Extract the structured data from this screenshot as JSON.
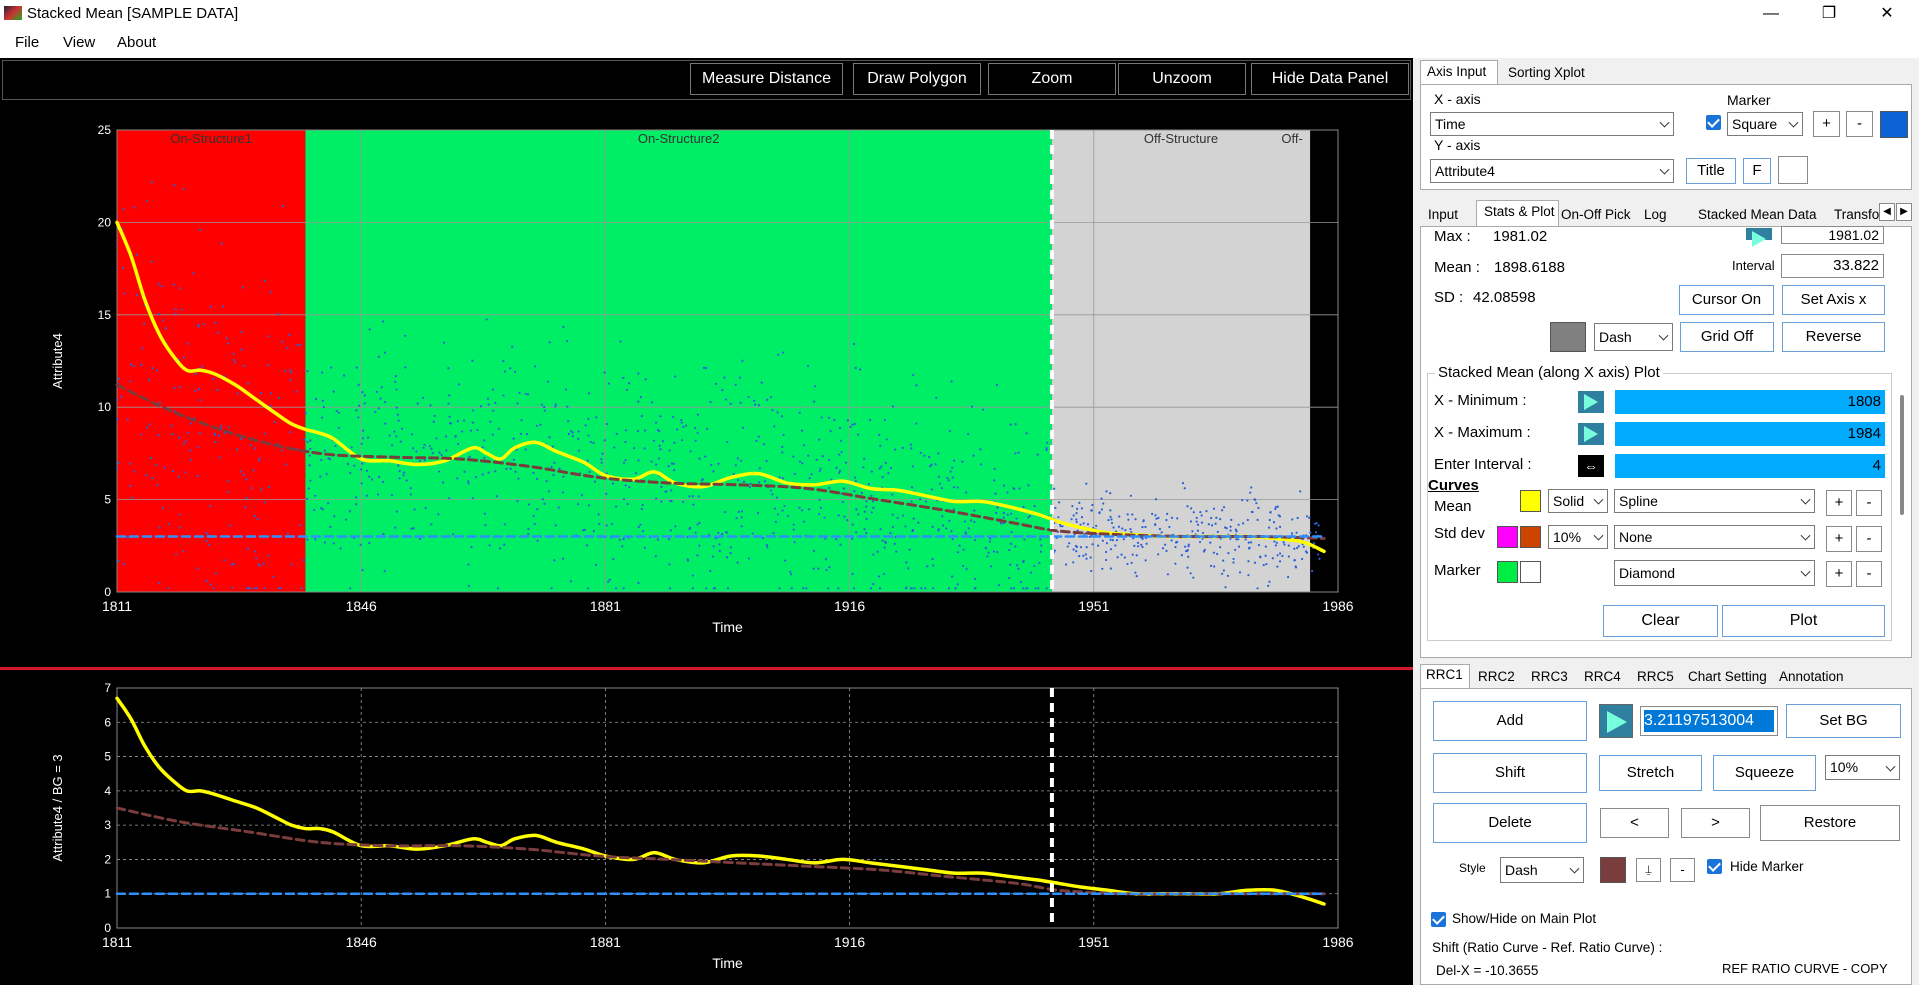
{
  "window": {
    "title": "Stacked Mean [SAMPLE DATA]",
    "min": "—",
    "max": "❐",
    "close": "✕"
  },
  "menu": [
    "File",
    "View",
    "About"
  ],
  "toolbar": {
    "measure_distance": "Measure Distance",
    "draw_polygon": "Draw Polygon",
    "zoom": "Zoom",
    "unzoom": "Unzoom",
    "hide_data_panel": "Hide Data Panel"
  },
  "colors": {
    "on_structure": "#ff0000",
    "on_structure2": "#00ee66",
    "off_structure": "#d3d3d3",
    "mean_line": "#ffff00",
    "trend_line": "#7a3c3c",
    "baseline": "#2f8fff",
    "scatter": "#2a5fd8"
  },
  "chart_data": [
    {
      "type": "scatter",
      "xlabel": "Time",
      "ylabel": "Attribute4",
      "xlim": [
        1811,
        1986
      ],
      "ylim": [
        0,
        25
      ],
      "x_ticks": [
        "1811",
        "1846",
        "1881",
        "1916",
        "1951",
        "1986"
      ],
      "y_ticks": [
        "0",
        "5",
        "10",
        "15",
        "20",
        "25"
      ],
      "grid": true,
      "regions": [
        {
          "label": "On-Structure1",
          "x0": 1811,
          "x1": 1838
        },
        {
          "label": "On-Structure2",
          "x0": 1838,
          "x1": 1945
        },
        {
          "label": "Off-Structure",
          "x0": 1945,
          "x1": 1982
        },
        {
          "label": "Off-",
          "x0": 1982,
          "x1": 1986
        }
      ],
      "vertical_marker_x": 1945,
      "series": [
        {
          "style": "solid",
          "x": [
            1811,
            1813,
            1815,
            1817,
            1819,
            1821,
            1823,
            1825,
            1828,
            1831,
            1834,
            1836,
            1838,
            1840,
            1842,
            1846,
            1850,
            1854,
            1858,
            1862,
            1864,
            1866,
            1868,
            1871,
            1874,
            1878,
            1881,
            1885,
            1888,
            1891,
            1895,
            1899,
            1903,
            1907,
            1911,
            1915,
            1919,
            1923,
            1927,
            1931,
            1935,
            1939,
            1943,
            1946,
            1949,
            1953,
            1957,
            1961,
            1965,
            1969,
            1973,
            1977,
            1981,
            1984
          ],
          "y": [
            20,
            18.2,
            15.8,
            14,
            12.8,
            12,
            12,
            11.8,
            11.2,
            10.4,
            9.6,
            9.1,
            8.8,
            8.6,
            8.3,
            7.2,
            7.1,
            6.9,
            7.1,
            7.8,
            7.5,
            7.2,
            7.8,
            8.1,
            7.6,
            7.0,
            6.3,
            6.1,
            6.5,
            5.9,
            5.7,
            6.2,
            6.4,
            5.9,
            5.8,
            6.0,
            5.6,
            5.5,
            5.2,
            4.9,
            4.9,
            4.6,
            4.2,
            3.8,
            3.5,
            3.2,
            3.1,
            3.0,
            3.0,
            3.0,
            3.0,
            2.9,
            2.7,
            2.2
          ]
        },
        {
          "style": "dashed",
          "x": [
            1811,
            1820,
            1830,
            1840,
            1850,
            1860,
            1870,
            1880,
            1890,
            1900,
            1910,
            1920,
            1930,
            1940,
            1946,
            1955,
            1965,
            1975,
            1984
          ],
          "y": [
            11.2,
            9.6,
            8.3,
            7.5,
            7.3,
            7.2,
            6.8,
            6.2,
            5.9,
            5.8,
            5.6,
            5.0,
            4.4,
            3.7,
            3.3,
            3.1,
            3.0,
            3.0,
            2.9
          ]
        },
        {
          "style": "dashed",
          "x": [
            1811,
            1984
          ],
          "y": [
            3,
            3
          ]
        }
      ]
    },
    {
      "type": "line",
      "xlabel": "Time",
      "ylabel": "Attribute4 / BG = 3",
      "xlim": [
        1811,
        1986
      ],
      "ylim": [
        0,
        7
      ],
      "x_ticks": [
        "1811",
        "1846",
        "1881",
        "1916",
        "1951",
        "1986"
      ],
      "y_ticks": [
        "0",
        "1",
        "2",
        "3",
        "4",
        "5",
        "6",
        "7"
      ],
      "grid": true,
      "vertical_marker_x": 1945,
      "series": [
        {
          "style": "solid",
          "x": [
            1811,
            1813,
            1815,
            1817,
            1819,
            1821,
            1823,
            1825,
            1828,
            1831,
            1834,
            1836,
            1838,
            1840,
            1842,
            1846,
            1850,
            1854,
            1858,
            1862,
            1864,
            1866,
            1868,
            1871,
            1874,
            1878,
            1881,
            1885,
            1888,
            1891,
            1895,
            1899,
            1903,
            1907,
            1911,
            1915,
            1919,
            1923,
            1927,
            1931,
            1935,
            1939,
            1943,
            1946,
            1949,
            1953,
            1957,
            1961,
            1965,
            1969,
            1973,
            1977,
            1981,
            1984
          ],
          "y": [
            6.7,
            6.1,
            5.3,
            4.7,
            4.3,
            4.0,
            4.0,
            3.9,
            3.7,
            3.5,
            3.2,
            3.0,
            2.9,
            2.9,
            2.8,
            2.4,
            2.4,
            2.3,
            2.4,
            2.6,
            2.5,
            2.4,
            2.6,
            2.7,
            2.5,
            2.3,
            2.1,
            2.0,
            2.2,
            2.0,
            1.9,
            2.1,
            2.1,
            2.0,
            1.9,
            2.0,
            1.9,
            1.8,
            1.7,
            1.6,
            1.6,
            1.5,
            1.4,
            1.3,
            1.2,
            1.1,
            1.0,
            1.0,
            1.0,
            1.0,
            1.1,
            1.1,
            0.9,
            0.7
          ]
        },
        {
          "style": "dashed",
          "x": [
            1811,
            1820,
            1830,
            1840,
            1850,
            1860,
            1870,
            1880,
            1890,
            1900,
            1910,
            1920,
            1930,
            1940,
            1946,
            1955,
            1965,
            1975,
            1984
          ],
          "y": [
            3.5,
            3.1,
            2.8,
            2.5,
            2.4,
            2.4,
            2.3,
            2.1,
            2.0,
            1.9,
            1.8,
            1.7,
            1.5,
            1.3,
            1.1,
            1.0,
            1.0,
            1.0,
            1.0
          ]
        },
        {
          "style": "dashed",
          "x": [
            1811,
            1984
          ],
          "y": [
            1,
            1
          ]
        }
      ]
    }
  ],
  "axis_tabs": [
    "Axis Input",
    "Sorting",
    "Xplot"
  ],
  "axis_input": {
    "x_axis_label": "X - axis",
    "x_axis_value": "Time",
    "y_axis_label": "Y - axis",
    "y_axis_value": "Attribute4",
    "marker_label": "Marker",
    "marker_value": "Square",
    "plus": "+",
    "minus": "-",
    "title_btn": "Title",
    "f_btn": "F"
  },
  "stats_tabs": [
    "Input",
    "Stats & Plot",
    "On-Off Pick",
    "Log",
    "Stacked Mean Data",
    "Transfo"
  ],
  "stats": {
    "max_label": "Max :",
    "max_value": "1981.02",
    "max_field": "1981.02",
    "mean_label": "Mean :",
    "mean_value": "1898.6188",
    "sd_label": "SD :",
    "sd_value": "42.08598",
    "interval_label": "Interval",
    "interval_value": "33.822",
    "cursor_on": "Cursor On",
    "set_axis_x": "Set Axis x",
    "grid_off": "Grid Off",
    "reverse": "Reverse",
    "line_style": "Dash"
  },
  "stacked_mean": {
    "group_title": "Stacked Mean (along X axis) Plot",
    "xmin_label": "X - Minimum :",
    "xmin_value": "1808",
    "xmax_label": "X - Maximum :",
    "xmax_value": "1984",
    "interval_label": "Enter Interval :",
    "interval_value": "4",
    "curves_label": "Curves",
    "mean_label": "Mean",
    "mean_style": "Solid",
    "mean_type": "Spline",
    "std_label": "Std dev",
    "std_pct": "10%",
    "std_type": "None",
    "marker_label": "Marker",
    "marker_type": "Diamond",
    "clear": "Clear",
    "plot": "Plot"
  },
  "rrc_tabs": [
    "RRC1",
    "RRC2",
    "RRC3",
    "RRC4",
    "RRC5",
    "Chart Setting",
    "Annotation"
  ],
  "rrc": {
    "add": "Add",
    "value": "3.21197513004",
    "set_bg": "Set BG",
    "shift": "Shift",
    "stretch": "Stretch",
    "squeeze": "Squeeze",
    "pct": "10%",
    "delete": "Delete",
    "left": "<",
    "right": ">",
    "restore": "Restore",
    "style_label": "Style",
    "style_value": "Dash",
    "up": "⍊",
    "down": "-",
    "hide_marker": "Hide Marker",
    "show_hide": "Show/Hide on Main Plot",
    "shift_text": "Shift (Ratio Curve - Ref. Ratio Curve) :",
    "delx": "Del-X = -10.3655",
    "ref_copy": "REF  RATIO  CURVE - COPY"
  }
}
